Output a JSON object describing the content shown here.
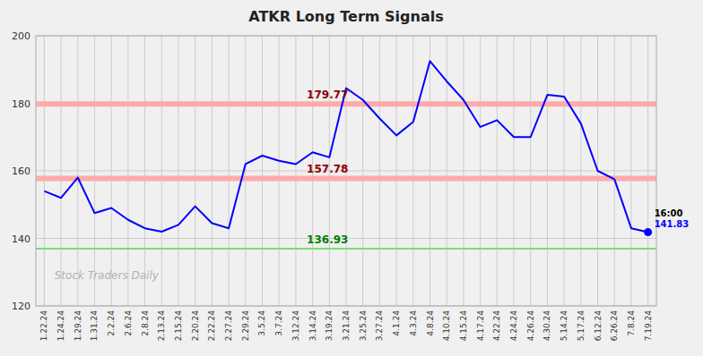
{
  "chart_data": {
    "type": "line",
    "title": "ATKR Long Term Signals",
    "watermark": "Stock Traders Daily",
    "categories": [
      "1.22.24",
      "1.24.24",
      "1.29.24",
      "1.31.24",
      "2.2.24",
      "2.6.24",
      "2.8.24",
      "2.13.24",
      "2.15.24",
      "2.20.24",
      "2.22.24",
      "2.27.24",
      "2.29.24",
      "3.5.24",
      "3.7.24",
      "3.12.24",
      "3.14.24",
      "3.19.24",
      "3.21.24",
      "3.25.24",
      "3.27.24",
      "4.1.24",
      "4.3.24",
      "4.8.24",
      "4.10.24",
      "4.15.24",
      "4.17.24",
      "4.22.24",
      "4.24.24",
      "4.26.24",
      "4.30.24",
      "5.14.24",
      "5.17.24",
      "6.12.24",
      "6.26.24",
      "7.8.24",
      "7.19.24"
    ],
    "values": [
      154.0,
      152.0,
      158.0,
      147.5,
      149.0,
      145.5,
      143.0,
      142.0,
      144.0,
      149.5,
      144.5,
      143.0,
      162.0,
      164.5,
      163.0,
      162.0,
      165.5,
      164.0,
      184.5,
      181.0,
      175.5,
      170.5,
      174.5,
      192.5,
      186.5,
      181.0,
      173.0,
      175.0,
      170.0,
      170.0,
      182.5,
      182.0,
      174.0,
      160.0,
      157.5,
      143.0,
      141.83
    ],
    "color": "blue",
    "hlines": [
      {
        "value": 179.77,
        "label": "179.77",
        "color": "#ffaaaa",
        "label_color": "#8b0000"
      },
      {
        "value": 157.78,
        "label": "157.78",
        "color": "#ffaaaa",
        "label_color": "#8b0000"
      },
      {
        "value": 136.93,
        "label": "136.93",
        "color": "#77dd77",
        "label_color": "green"
      }
    ],
    "last_point": {
      "value": 141.83,
      "time_label": "16:00",
      "label": "141.83",
      "color": "blue"
    },
    "ylim": [
      120,
      200
    ],
    "yticks": [
      120,
      140,
      160,
      180,
      200
    ],
    "grid": true
  }
}
